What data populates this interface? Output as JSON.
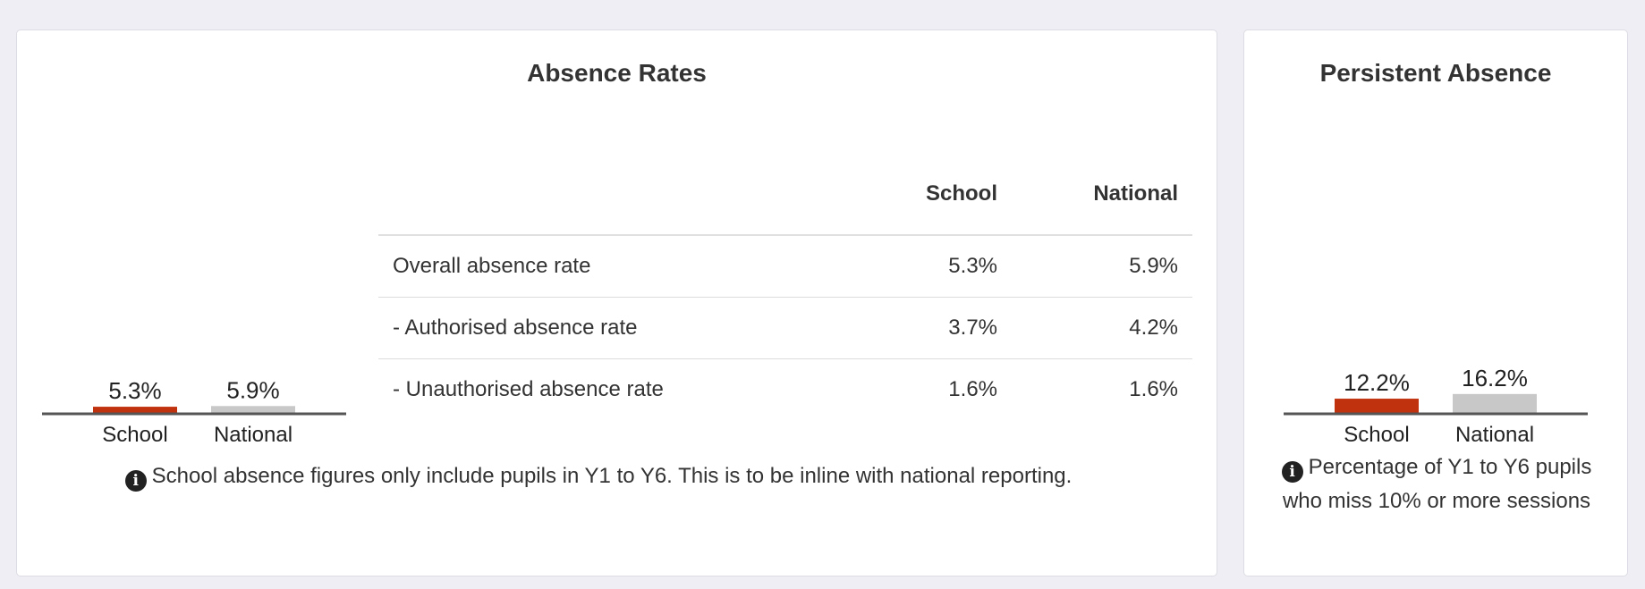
{
  "absence_rates": {
    "title": "Absence Rates",
    "table": {
      "headers": [
        "",
        "School",
        "National"
      ],
      "rows": [
        {
          "label": "Overall absence rate",
          "school": "5.3%",
          "national": "5.9%"
        },
        {
          "label": "- Authorised absence rate",
          "school": "3.7%",
          "national": "4.2%"
        },
        {
          "label": "- Unauthorised absence rate",
          "school": "1.6%",
          "national": "1.6%"
        }
      ]
    },
    "note": "School absence figures only include pupils in Y1 to Y6. This is to be inline with national reporting."
  },
  "persistent_absence": {
    "title": "Persistent Absence",
    "note": "Percentage of Y1 to Y6 pupils who miss 10% or more sessions"
  },
  "colors": {
    "school": "#c0310d",
    "national": "#c8c8c8",
    "axis": "#555555"
  },
  "chart_data": [
    {
      "type": "bar",
      "categories": [
        "School",
        "National"
      ],
      "values": [
        5.3,
        5.9
      ],
      "labels": [
        "5.3%",
        "5.9%"
      ],
      "colors": [
        "#c0310d",
        "#c8c8c8"
      ],
      "ylim": [
        0,
        75
      ]
    },
    {
      "type": "bar",
      "categories": [
        "School",
        "National"
      ],
      "values": [
        12.2,
        16.2
      ],
      "labels": [
        "12.2%",
        "16.2%"
      ],
      "colors": [
        "#c0310d",
        "#c8c8c8"
      ],
      "ylim": [
        0,
        75
      ]
    }
  ]
}
